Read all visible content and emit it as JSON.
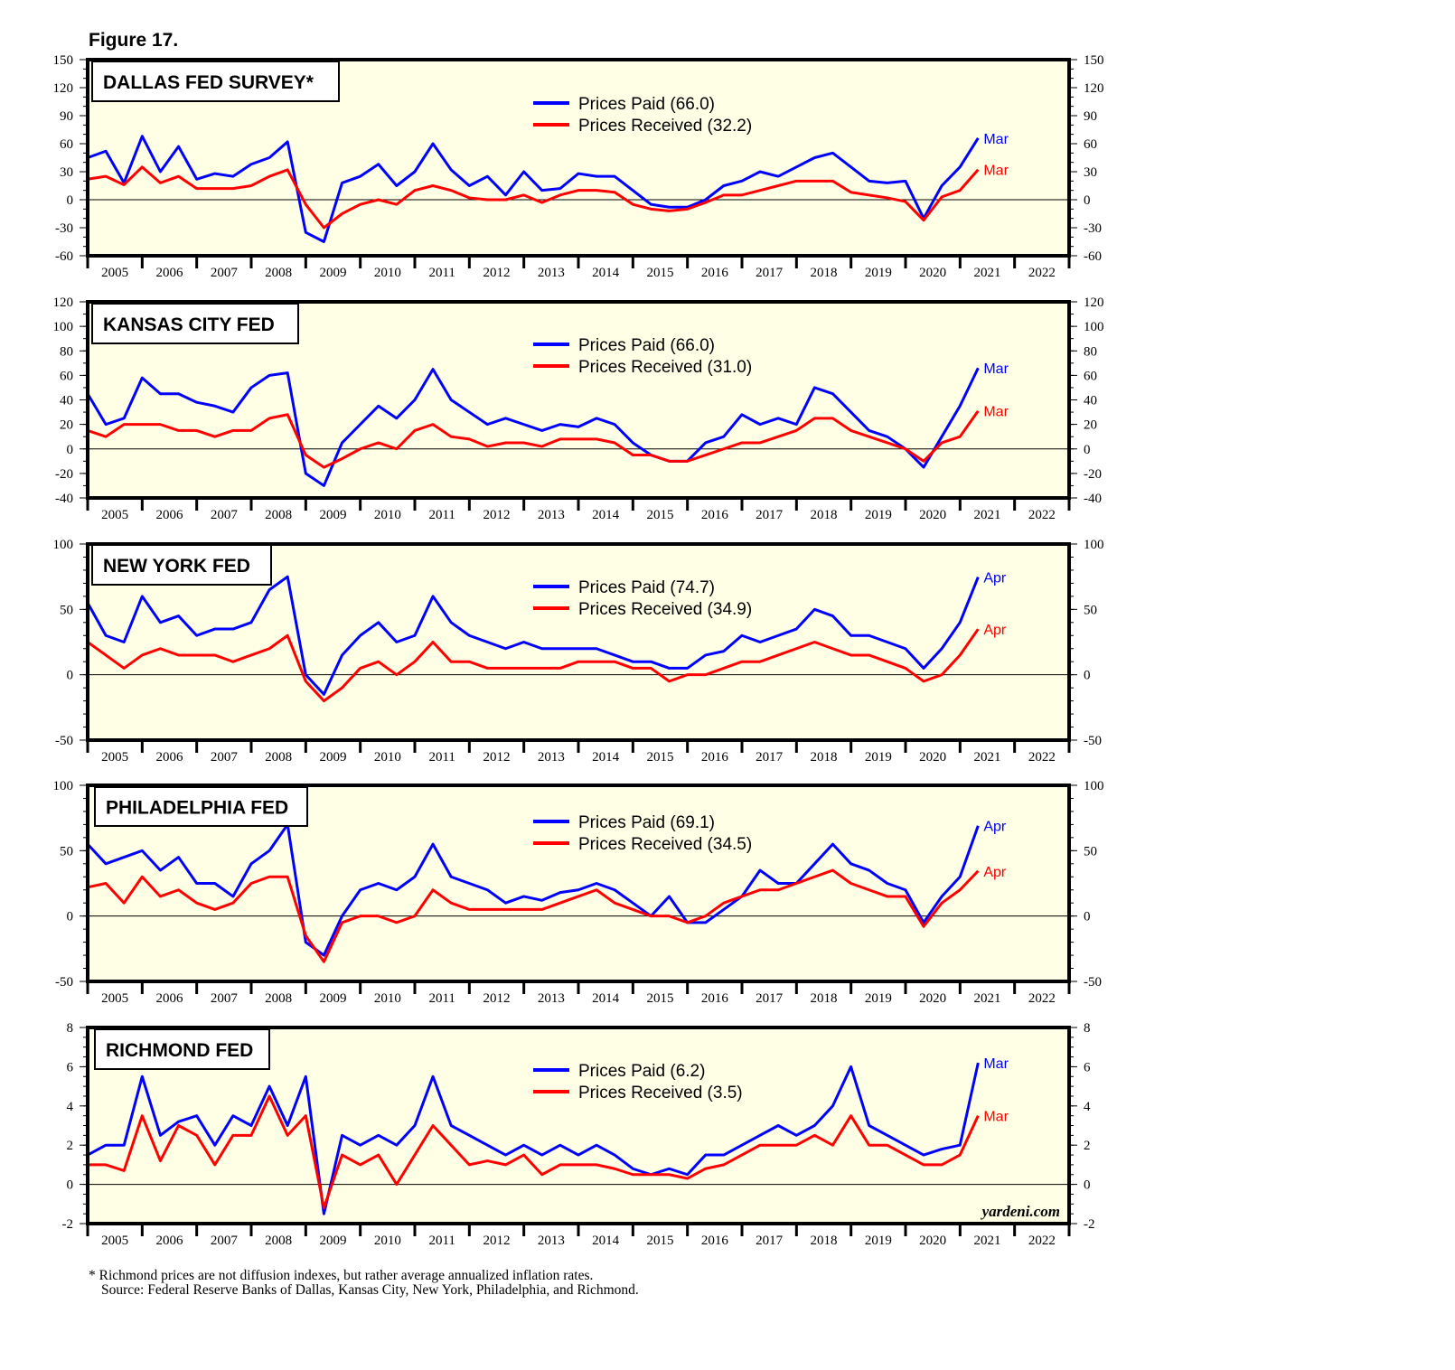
{
  "figure_title": "Figure 17.",
  "watermark": "yardeni.com",
  "footnote": "* Richmond prices are not diffusion indexes, but rather average annualized inflation rates.",
  "source": "Source: Federal Reserve Banks of Dallas, Kansas City, New York, Philadelphia, and Richmond.",
  "colors": {
    "paid": "#0000ff",
    "received": "#ff0000",
    "plot_bg": "#ffffe6"
  },
  "chart_data": [
    {
      "type": "line",
      "title": "DALLAS FED SURVEY*",
      "ylim": [
        -60,
        150
      ],
      "yticks": [
        150,
        120,
        90,
        60,
        30,
        0,
        -30,
        -60
      ],
      "minor_step": 10,
      "x_start": 2005,
      "x_step": 0.3333,
      "xticks": [
        "2005",
        "2006",
        "2007",
        "2008",
        "2009",
        "2010",
        "2011",
        "2012",
        "2013",
        "2014",
        "2015",
        "2016",
        "2017",
        "2018",
        "2019",
        "2020",
        "2021",
        "2022"
      ],
      "series": [
        {
          "name": "Prices Paid (66.0)",
          "end_label": "Mar",
          "color": "paid",
          "values": [
            45,
            52,
            18,
            68,
            30,
            57,
            22,
            28,
            25,
            38,
            45,
            62,
            -35,
            -45,
            18,
            25,
            38,
            15,
            30,
            60,
            32,
            15,
            25,
            5,
            30,
            10,
            12,
            28,
            25,
            25,
            10,
            -5,
            -8,
            -8,
            0,
            15,
            20,
            30,
            25,
            35,
            45,
            50,
            35,
            20,
            18,
            20,
            -20,
            15,
            35,
            66
          ]
        },
        {
          "name": "Prices Received (32.2)",
          "end_label": "Mar",
          "color": "received",
          "values": [
            22,
            25,
            16,
            35,
            18,
            25,
            12,
            12,
            12,
            15,
            25,
            32,
            -5,
            -30,
            -15,
            -5,
            0,
            -5,
            10,
            15,
            10,
            2,
            0,
            0,
            5,
            -3,
            5,
            10,
            10,
            8,
            -5,
            -10,
            -12,
            -10,
            -3,
            5,
            5,
            10,
            15,
            20,
            20,
            20,
            8,
            5,
            2,
            -2,
            -22,
            3,
            10,
            32.2
          ]
        }
      ]
    },
    {
      "type": "line",
      "title": "KANSAS CITY FED",
      "ylim": [
        -40,
        120
      ],
      "yticks": [
        120,
        100,
        80,
        60,
        40,
        20,
        0,
        -20,
        -40
      ],
      "minor_step": 10,
      "x_start": 2005,
      "x_step": 0.3333,
      "xticks": [
        "2005",
        "2006",
        "2007",
        "2008",
        "2009",
        "2010",
        "2011",
        "2012",
        "2013",
        "2014",
        "2015",
        "2016",
        "2017",
        "2018",
        "2019",
        "2020",
        "2021",
        "2022"
      ],
      "series": [
        {
          "name": "Prices Paid (66.0)",
          "end_label": "Mar",
          "color": "paid",
          "values": [
            45,
            20,
            25,
            58,
            45,
            45,
            38,
            35,
            30,
            50,
            60,
            62,
            -20,
            -30,
            5,
            20,
            35,
            25,
            40,
            65,
            40,
            30,
            20,
            25,
            20,
            15,
            20,
            18,
            25,
            20,
            5,
            -5,
            -10,
            -10,
            5,
            10,
            28,
            20,
            25,
            20,
            50,
            45,
            30,
            15,
            10,
            0,
            -15,
            10,
            35,
            66
          ]
        },
        {
          "name": "Prices Received (31.0)",
          "end_label": "Mar",
          "color": "received",
          "values": [
            15,
            10,
            20,
            20,
            20,
            15,
            15,
            10,
            15,
            15,
            25,
            28,
            -5,
            -15,
            -8,
            0,
            5,
            0,
            15,
            20,
            10,
            8,
            2,
            5,
            5,
            2,
            8,
            8,
            8,
            5,
            -5,
            -5,
            -10,
            -10,
            -5,
            0,
            5,
            5,
            10,
            15,
            25,
            25,
            15,
            10,
            5,
            0,
            -10,
            5,
            10,
            31
          ]
        }
      ]
    },
    {
      "type": "line",
      "title": "NEW YORK FED",
      "ylim": [
        -50,
        100
      ],
      "yticks": [
        100,
        50,
        0,
        -50
      ],
      "minor_step": 10,
      "x_start": 2005,
      "x_step": 0.3333,
      "xticks": [
        "2005",
        "2006",
        "2007",
        "2008",
        "2009",
        "2010",
        "2011",
        "2012",
        "2013",
        "2014",
        "2015",
        "2016",
        "2017",
        "2018",
        "2019",
        "2020",
        "2021",
        "2022"
      ],
      "series": [
        {
          "name": "Prices Paid (74.7)",
          "end_label": "Apr",
          "color": "paid",
          "values": [
            55,
            30,
            25,
            60,
            40,
            45,
            30,
            35,
            35,
            40,
            65,
            75,
            0,
            -15,
            15,
            30,
            40,
            25,
            30,
            60,
            40,
            30,
            25,
            20,
            25,
            20,
            20,
            20,
            20,
            15,
            10,
            10,
            5,
            5,
            15,
            18,
            30,
            25,
            30,
            35,
            50,
            45,
            30,
            30,
            25,
            20,
            5,
            20,
            40,
            74.7
          ]
        },
        {
          "name": "Prices Received (34.9)",
          "end_label": "Apr",
          "color": "received",
          "values": [
            25,
            15,
            5,
            15,
            20,
            15,
            15,
            15,
            10,
            15,
            20,
            30,
            -5,
            -20,
            -10,
            5,
            10,
            0,
            10,
            25,
            10,
            10,
            5,
            5,
            5,
            5,
            5,
            10,
            10,
            10,
            5,
            5,
            -5,
            0,
            0,
            5,
            10,
            10,
            15,
            20,
            25,
            20,
            15,
            15,
            10,
            5,
            -5,
            0,
            15,
            34.9
          ]
        }
      ]
    },
    {
      "type": "line",
      "title": "PHILADELPHIA FED",
      "ylim": [
        -50,
        100
      ],
      "yticks": [
        100,
        50,
        0,
        -50
      ],
      "minor_step": 10,
      "x_start": 2005,
      "x_step": 0.3333,
      "xticks": [
        "2005",
        "2006",
        "2007",
        "2008",
        "2009",
        "2010",
        "2011",
        "2012",
        "2013",
        "2014",
        "2015",
        "2016",
        "2017",
        "2018",
        "2019",
        "2020",
        "2021",
        "2022"
      ],
      "series": [
        {
          "name": "Prices Paid (69.1)",
          "end_label": "Apr",
          "color": "paid",
          "values": [
            55,
            40,
            45,
            50,
            35,
            45,
            25,
            25,
            15,
            40,
            50,
            70,
            -20,
            -30,
            0,
            20,
            25,
            20,
            30,
            55,
            30,
            25,
            20,
            10,
            15,
            12,
            18,
            20,
            25,
            20,
            10,
            0,
            15,
            -5,
            -5,
            5,
            15,
            35,
            25,
            25,
            40,
            55,
            40,
            35,
            25,
            20,
            -5,
            15,
            30,
            69.1
          ]
        },
        {
          "name": "Prices Received (34.5)",
          "end_label": "Apr",
          "color": "received",
          "values": [
            22,
            25,
            10,
            30,
            15,
            20,
            10,
            5,
            10,
            25,
            30,
            30,
            -15,
            -35,
            -5,
            0,
            0,
            -5,
            0,
            20,
            10,
            5,
            5,
            5,
            5,
            5,
            10,
            15,
            20,
            10,
            5,
            0,
            0,
            -5,
            0,
            10,
            15,
            20,
            20,
            25,
            30,
            35,
            25,
            20,
            15,
            15,
            -8,
            10,
            20,
            34.5
          ]
        }
      ]
    },
    {
      "type": "line",
      "title": "RICHMOND FED",
      "ylim": [
        -2,
        8
      ],
      "yticks": [
        8,
        6,
        4,
        2,
        0,
        -2
      ],
      "minor_step": 0.5,
      "x_start": 2005,
      "x_step": 0.3333,
      "xticks": [
        "2005",
        "2006",
        "2007",
        "2008",
        "2009",
        "2010",
        "2011",
        "2012",
        "2013",
        "2014",
        "2015",
        "2016",
        "2017",
        "2018",
        "2019",
        "2020",
        "2021",
        "2022"
      ],
      "series": [
        {
          "name": "Prices Paid (6.2)",
          "end_label": "Mar",
          "color": "paid",
          "values": [
            1.5,
            2,
            2,
            5.5,
            2.5,
            3.2,
            3.5,
            2,
            3.5,
            3,
            5,
            3,
            5.5,
            -1.5,
            2.5,
            2,
            2.5,
            2,
            3,
            5.5,
            3,
            2.5,
            2,
            1.5,
            2,
            1.5,
            2,
            1.5,
            2,
            1.5,
            0.8,
            0.5,
            0.8,
            0.5,
            1.5,
            1.5,
            2,
            2.5,
            3,
            2.5,
            3,
            4,
            6,
            3,
            2.5,
            2,
            1.5,
            1.8,
            2,
            6.2
          ]
        },
        {
          "name": "Prices Received (3.5)",
          "end_label": "Mar",
          "color": "received",
          "values": [
            1,
            1,
            0.7,
            3.5,
            1.2,
            3,
            2.5,
            1,
            2.5,
            2.5,
            4.5,
            2.5,
            3.5,
            -1.2,
            1.5,
            1,
            1.5,
            0,
            1.5,
            3,
            2,
            1,
            1.2,
            1,
            1.5,
            0.5,
            1,
            1,
            1,
            0.8,
            0.5,
            0.5,
            0.5,
            0.3,
            0.8,
            1,
            1.5,
            2,
            2,
            2,
            2.5,
            2,
            3.5,
            2,
            2,
            1.5,
            1,
            1,
            1.5,
            3.5
          ]
        }
      ]
    }
  ]
}
